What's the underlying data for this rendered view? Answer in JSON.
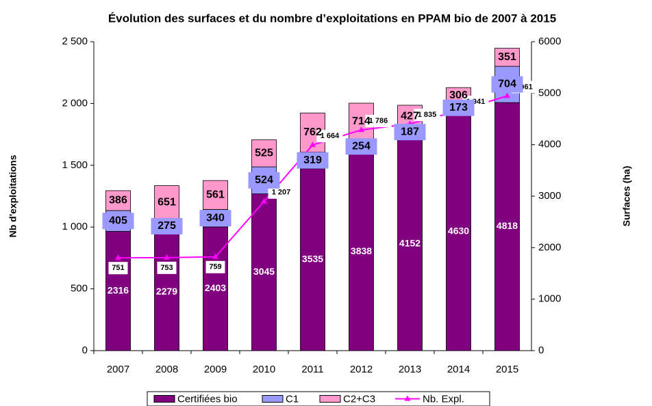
{
  "chart_data": {
    "type": "bar",
    "stacked": true,
    "title": "Évolution des surfaces et du nombre d’exploitations en PPAM bio de 2007 à 2015",
    "ylabel": "Nb d'exploitations",
    "y2label": "Surfaces (ha)",
    "categories": [
      "2007",
      "2008",
      "2009",
      "2010",
      "2011",
      "2012",
      "2013",
      "2014",
      "2015"
    ],
    "ylim": [
      0,
      2500
    ],
    "yticks": [
      0,
      500,
      {
        "value": 1000,
        "label": "1 000"
      },
      {
        "value": 1500,
        "label": "1 500"
      },
      {
        "value": 2000,
        "label": "2 000"
      },
      {
        "value": 2500,
        "label": "2 500"
      }
    ],
    "y2lim": [
      0,
      6000
    ],
    "y2ticks": [
      0,
      1000,
      2000,
      3000,
      4000,
      5000,
      6000
    ],
    "legend": "bottom",
    "series": [
      {
        "name": "Certifiées bio",
        "type": "bar",
        "axis": "y2",
        "color": "#800080",
        "values": [
          2316,
          2279,
          2403,
          3045,
          3535,
          3838,
          4152,
          4630,
          4818
        ]
      },
      {
        "name": "C1",
        "type": "bar",
        "axis": "y2",
        "color": "#9999ff",
        "values": [
          405,
          275,
          340,
          524,
          319,
          254,
          187,
          173,
          704
        ]
      },
      {
        "name": "C2+C3",
        "type": "bar",
        "axis": "y2",
        "color": "#ff99cc",
        "values": [
          386,
          651,
          561,
          525,
          762,
          714,
          427,
          306,
          351
        ]
      },
      {
        "name": "Nb. Expl.",
        "type": "line",
        "axis": "y",
        "color": "#ff00ff",
        "values": [
          751,
          753,
          759,
          1207,
          1664,
          1786,
          1835,
          1941,
          2061
        ],
        "value_labels": [
          "751",
          "753",
          "759",
          "1 207",
          "1 664",
          "1 786",
          "1 835",
          "1 941",
          "2061"
        ]
      }
    ]
  }
}
